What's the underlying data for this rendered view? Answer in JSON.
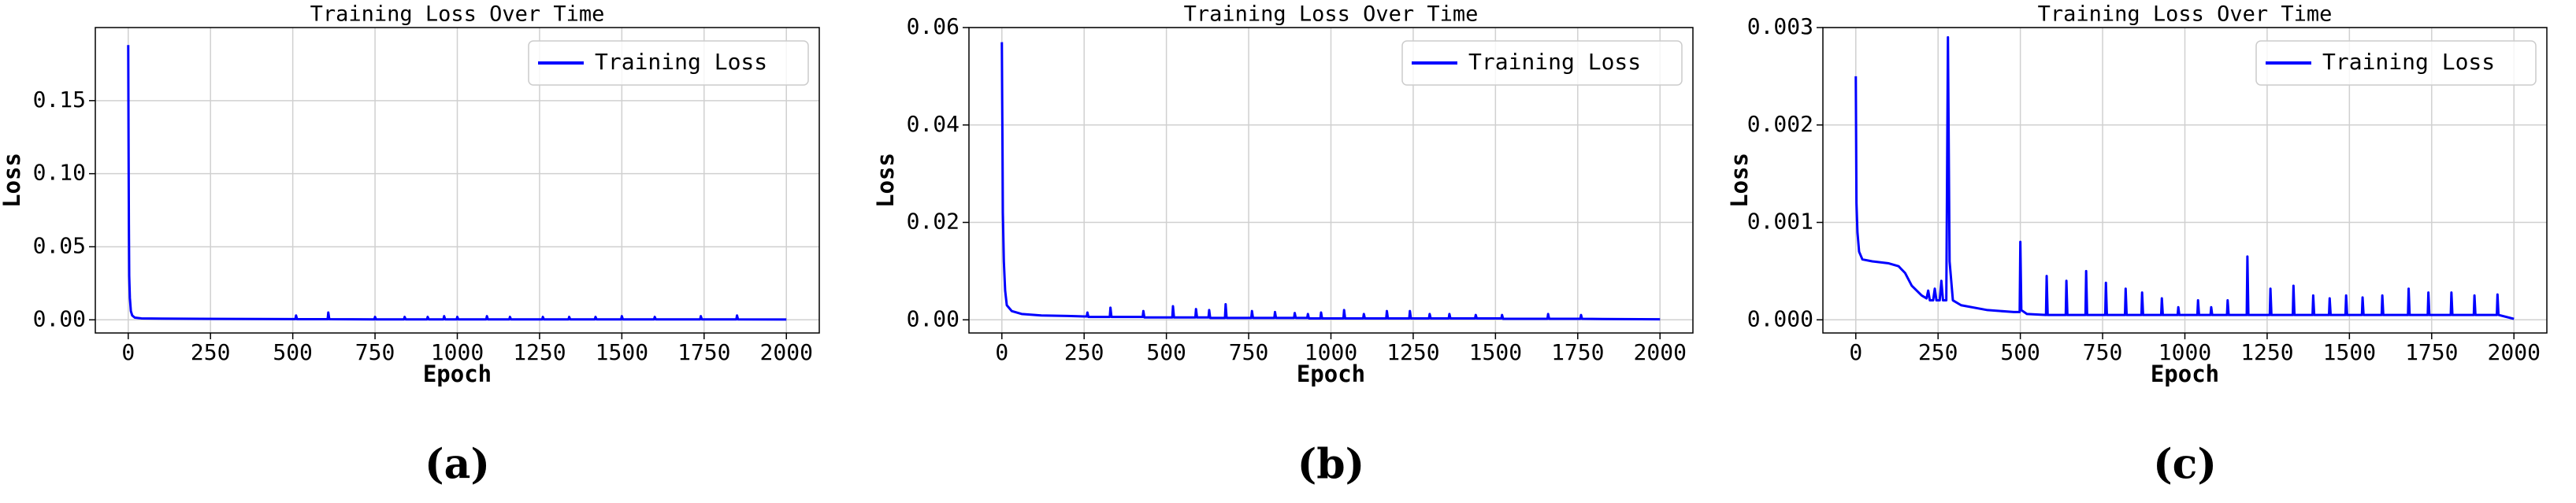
{
  "chart_data": [
    {
      "type": "line",
      "title": "Training Loss Over Time",
      "xlabel": "Epoch",
      "ylabel": "Loss",
      "panel_label": "(a)",
      "xlim": [
        -100,
        2100
      ],
      "ylim": [
        -0.009,
        0.2
      ],
      "xticks": [
        0,
        250,
        500,
        750,
        1000,
        1250,
        1500,
        1750,
        2000
      ],
      "yticks": [
        {
          "value": 0,
          "label": "0.00"
        },
        {
          "value": 0.05,
          "label": "0.05"
        },
        {
          "value": 0.1,
          "label": "0.10"
        },
        {
          "value": 0.15,
          "label": "0.15"
        }
      ],
      "grid": true,
      "legend": "upper right",
      "x": [
        0,
        1,
        2,
        3,
        5,
        8,
        12,
        20,
        40,
        100,
        300,
        500,
        508,
        510,
        513,
        606,
        608,
        611,
        748,
        750,
        753,
        838,
        840,
        843,
        908,
        910,
        913,
        958,
        960,
        963,
        998,
        1000,
        1003,
        1088,
        1090,
        1093,
        1158,
        1160,
        1163,
        1258,
        1260,
        1263,
        1338,
        1340,
        1343,
        1418,
        1420,
        1423,
        1498,
        1500,
        1503,
        1598,
        1600,
        1603,
        1738,
        1740,
        1743,
        1848,
        1850,
        1853,
        2000
      ],
      "series": [
        {
          "name": "Training Loss",
          "color": "#0000ff",
          "values": [
            0.188,
            0.12,
            0.065,
            0.03,
            0.015,
            0.006,
            0.003,
            0.0015,
            0.001,
            0.0008,
            0.0006,
            0.0005,
            0.0005,
            0.003,
            0.0004,
            0.0004,
            0.005,
            0.0004,
            0.0003,
            0.002,
            0.0003,
            0.0003,
            0.002,
            0.0003,
            0.0003,
            0.002,
            0.0003,
            0.0003,
            0.0025,
            0.0003,
            0.0003,
            0.002,
            0.0003,
            0.0003,
            0.0025,
            0.0003,
            0.0003,
            0.002,
            0.0003,
            0.0003,
            0.002,
            0.0003,
            0.0003,
            0.002,
            0.0003,
            0.0003,
            0.002,
            0.0003,
            0.0003,
            0.0025,
            0.0003,
            0.0003,
            0.002,
            0.0003,
            0.0003,
            0.0025,
            0.0003,
            0.0003,
            0.003,
            0.0003,
            0.0002
          ]
        }
      ]
    },
    {
      "type": "line",
      "title": "Training Loss Over Time",
      "xlabel": "Epoch",
      "ylabel": "Loss",
      "panel_label": "(b)",
      "xlim": [
        -100,
        2100
      ],
      "ylim": [
        -0.0027,
        0.06
      ],
      "xticks": [
        0,
        250,
        500,
        750,
        1000,
        1250,
        1500,
        1750,
        2000
      ],
      "yticks": [
        {
          "value": 0,
          "label": "0.00"
        },
        {
          "value": 0.02,
          "label": "0.02"
        },
        {
          "value": 0.04,
          "label": "0.04"
        },
        {
          "value": 0.06,
          "label": "0.06"
        }
      ],
      "grid": true,
      "legend": "upper right",
      "x": [
        0,
        1,
        2,
        3,
        6,
        10,
        15,
        30,
        60,
        120,
        200,
        250,
        258,
        260,
        263,
        328,
        330,
        333,
        428,
        430,
        433,
        518,
        520,
        523,
        588,
        590,
        593,
        628,
        630,
        633,
        678,
        680,
        683,
        758,
        760,
        763,
        828,
        830,
        833,
        888,
        890,
        893,
        928,
        930,
        933,
        968,
        970,
        973,
        1038,
        1040,
        1043,
        1098,
        1100,
        1103,
        1168,
        1170,
        1173,
        1238,
        1240,
        1243,
        1298,
        1300,
        1303,
        1358,
        1360,
        1363,
        1438,
        1440,
        1443,
        1518,
        1520,
        1523,
        1658,
        1660,
        1663,
        1758,
        1760,
        1763,
        2000
      ],
      "series": [
        {
          "name": "Training Loss",
          "color": "#0000ff",
          "values": [
            0.057,
            0.045,
            0.035,
            0.022,
            0.012,
            0.006,
            0.003,
            0.0018,
            0.0012,
            0.0009,
            0.0008,
            0.0007,
            0.0007,
            0.0015,
            0.0006,
            0.0006,
            0.0025,
            0.0006,
            0.0006,
            0.0018,
            0.0005,
            0.0005,
            0.0028,
            0.0005,
            0.0005,
            0.0022,
            0.0005,
            0.0005,
            0.002,
            0.0004,
            0.0004,
            0.0032,
            0.0004,
            0.0004,
            0.0018,
            0.0004,
            0.0004,
            0.0016,
            0.0004,
            0.0004,
            0.0014,
            0.0004,
            0.0004,
            0.0012,
            0.0003,
            0.0003,
            0.0015,
            0.0003,
            0.0003,
            0.002,
            0.0003,
            0.0003,
            0.0012,
            0.0003,
            0.0003,
            0.0018,
            0.0003,
            0.0003,
            0.0018,
            0.0003,
            0.0003,
            0.0012,
            0.0003,
            0.0003,
            0.0012,
            0.0003,
            0.0003,
            0.001,
            0.0003,
            0.0003,
            0.001,
            0.0002,
            0.0002,
            0.0012,
            0.0002,
            0.0002,
            0.001,
            0.0002,
            0.0001
          ]
        }
      ]
    },
    {
      "type": "line",
      "title": "Training Loss Over Time",
      "xlabel": "Epoch",
      "ylabel": "Loss",
      "panel_label": "(c)",
      "xlim": [
        -100,
        2100
      ],
      "ylim": [
        -0.000135,
        0.003
      ],
      "xticks": [
        0,
        250,
        500,
        750,
        1000,
        1250,
        1500,
        1750,
        2000
      ],
      "yticks": [
        {
          "value": 0,
          "label": "0.000"
        },
        {
          "value": 0.001,
          "label": "0.001"
        },
        {
          "value": 0.002,
          "label": "0.002"
        },
        {
          "value": 0.003,
          "label": "0.003"
        }
      ],
      "grid": true,
      "legend": "upper right",
      "x": [
        0,
        2,
        5,
        10,
        20,
        50,
        100,
        130,
        150,
        170,
        200,
        215,
        220,
        225,
        235,
        240,
        245,
        255,
        260,
        265,
        275,
        280,
        285,
        295,
        320,
        400,
        480,
        498,
        500,
        503,
        520,
        578,
        580,
        583,
        638,
        640,
        643,
        698,
        700,
        703,
        758,
        760,
        763,
        818,
        820,
        823,
        868,
        870,
        873,
        928,
        930,
        933,
        978,
        980,
        983,
        1038,
        1040,
        1043,
        1078,
        1080,
        1083,
        1128,
        1130,
        1133,
        1188,
        1190,
        1193,
        1258,
        1260,
        1263,
        1328,
        1330,
        1333,
        1388,
        1390,
        1393,
        1438,
        1440,
        1443,
        1488,
        1490,
        1493,
        1538,
        1540,
        1543,
        1598,
        1600,
        1603,
        1678,
        1680,
        1683,
        1738,
        1740,
        1743,
        1808,
        1810,
        1813,
        1878,
        1880,
        1883,
        1948,
        1950,
        1953,
        2000
      ],
      "series": [
        {
          "name": "Training Loss",
          "color": "#0000ff",
          "values": [
            0.0025,
            0.0012,
            0.0009,
            0.0007,
            0.00062,
            0.0006,
            0.00058,
            0.00055,
            0.00048,
            0.00035,
            0.00025,
            0.00022,
            0.0003,
            0.0002,
            0.0002,
            0.00032,
            0.0002,
            0.0002,
            0.0004,
            0.0002,
            0.0002,
            0.0029,
            0.0006,
            0.0002,
            0.00015,
            0.0001,
            8e-05,
            8e-05,
            0.0008,
            0.0001,
            6e-05,
            5e-05,
            0.00045,
            5e-05,
            5e-05,
            0.0004,
            5e-05,
            5e-05,
            0.0005,
            5e-05,
            5e-05,
            0.00038,
            5e-05,
            5e-05,
            0.00032,
            5e-05,
            5e-05,
            0.00028,
            5e-05,
            5e-05,
            0.00022,
            5e-05,
            5e-05,
            0.00013,
            5e-05,
            5e-05,
            0.0002,
            5e-05,
            5e-05,
            0.00013,
            5e-05,
            5e-05,
            0.0002,
            5e-05,
            5e-05,
            0.00065,
            5e-05,
            5e-05,
            0.00032,
            5e-05,
            5e-05,
            0.00035,
            5e-05,
            5e-05,
            0.00025,
            5e-05,
            5e-05,
            0.00022,
            5e-05,
            5e-05,
            0.00025,
            5e-05,
            5e-05,
            0.00023,
            5e-05,
            5e-05,
            0.00025,
            5e-05,
            5e-05,
            0.00032,
            5e-05,
            5e-05,
            0.00028,
            5e-05,
            5e-05,
            0.00028,
            5e-05,
            5e-05,
            0.00025,
            5e-05,
            5e-05,
            0.00026,
            5e-05,
            1e-05
          ]
        }
      ]
    }
  ]
}
